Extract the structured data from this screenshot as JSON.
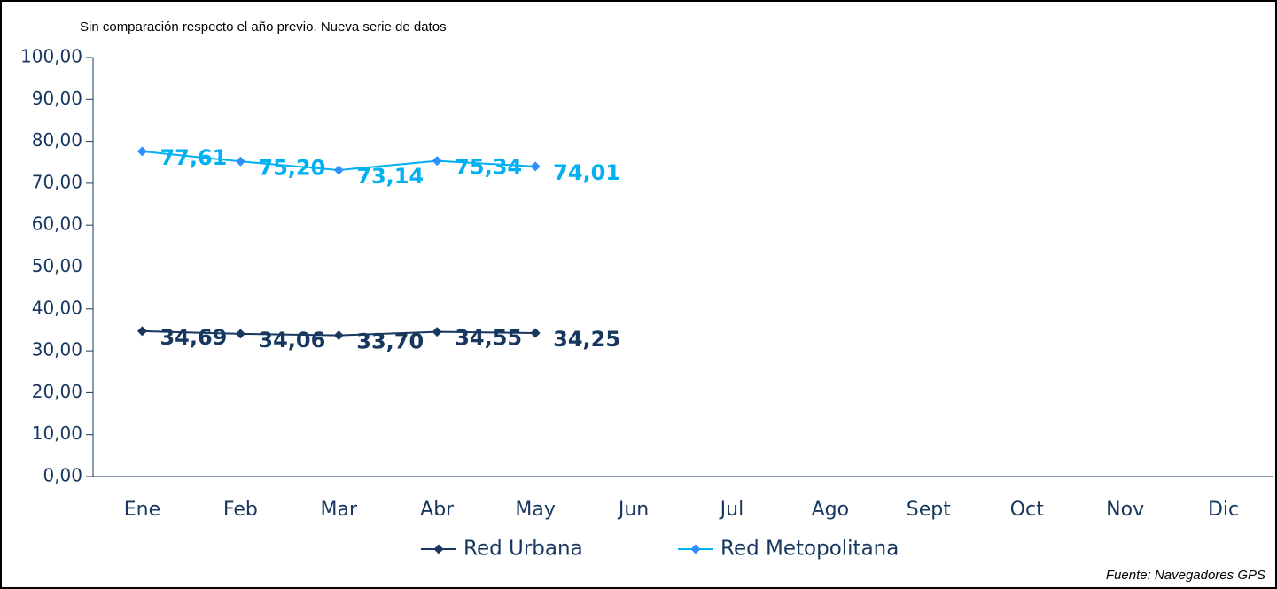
{
  "chart_data": {
    "type": "line",
    "subtitle": "Sin comparación respecto el año previo. Nueva serie de datos",
    "source": "Fuente: Navegadores GPS",
    "categories": [
      "Ene",
      "Feb",
      "Mar",
      "Abr",
      "May",
      "Jun",
      "Jul",
      "Ago",
      "Sept",
      "Oct",
      "Nov",
      "Dic"
    ],
    "series": [
      {
        "name": "Red Urbana",
        "color": "#17375e",
        "values": [
          34.69,
          34.06,
          33.7,
          34.55,
          34.25,
          null,
          null,
          null,
          null,
          null,
          null,
          null
        ],
        "value_labels": [
          "34,69",
          "34,06",
          "33,70",
          "34,55",
          "34,25",
          null,
          null,
          null,
          null,
          null,
          null,
          null
        ]
      },
      {
        "name": "Red Metopolitana",
        "color": "#00b0f0",
        "values": [
          77.61,
          75.2,
          73.14,
          75.34,
          74.01,
          null,
          null,
          null,
          null,
          null,
          null,
          null
        ],
        "value_labels": [
          "77,61",
          "75,20",
          "73,14",
          "75,34",
          "74,01",
          null,
          null,
          null,
          null,
          null,
          null,
          null
        ]
      }
    ],
    "ylim": [
      0,
      100
    ],
    "yticks": [
      {
        "value": 0,
        "label": "0,00"
      },
      {
        "value": 10,
        "label": "10,00"
      },
      {
        "value": 20,
        "label": "20,00"
      },
      {
        "value": 30,
        "label": "30,00"
      },
      {
        "value": 40,
        "label": "40,00"
      },
      {
        "value": 50,
        "label": "50,00"
      },
      {
        "value": 60,
        "label": "60,00"
      },
      {
        "value": 70,
        "label": "70,00"
      },
      {
        "value": 80,
        "label": "80,00"
      },
      {
        "value": 90,
        "label": "90,00"
      },
      {
        "value": {
          "value": 100
        },
        "label": "100,00"
      }
    ],
    "grid": false,
    "legend": "bottom"
  }
}
